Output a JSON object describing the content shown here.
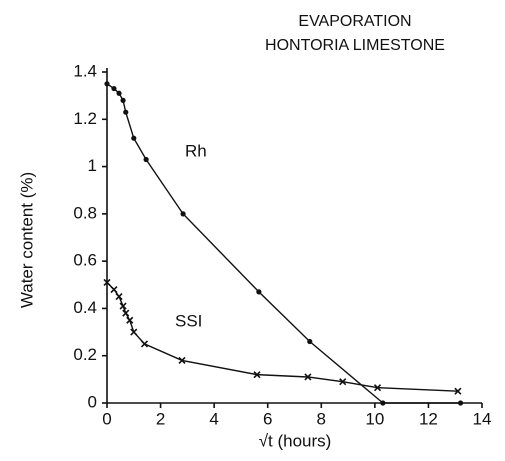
{
  "chart_data": {
    "type": "line",
    "title": "EVAPORATION",
    "subtitle": "HONTORIA LIMESTONE",
    "x_label": "√t (hours)",
    "y_label": "Water content (%)",
    "xlim": [
      0,
      14
    ],
    "xticks": [
      0,
      2,
      4,
      6,
      8,
      10,
      12,
      14
    ],
    "ylim": [
      0,
      1.4
    ],
    "yticks": [
      0,
      0.2,
      0.4,
      0.6,
      0.8,
      1,
      1.2,
      1.4
    ],
    "grid": false,
    "series": [
      {
        "name": "Rh",
        "color": "#111111",
        "marker": "circle",
        "x": [
          0,
          0.26,
          0.45,
          0.6,
          0.7,
          1.0,
          1.46,
          2.84,
          5.67,
          7.57,
          10.3,
          13.2
        ],
        "values": [
          1.35,
          1.33,
          1.31,
          1.28,
          1.23,
          1.12,
          1.03,
          0.8,
          0.47,
          0.26,
          0.0,
          0.0
        ]
      },
      {
        "name": "SSI",
        "color": "#111111",
        "marker": "cross",
        "x": [
          0,
          0.26,
          0.45,
          0.6,
          0.7,
          0.85,
          1.0,
          1.4,
          2.8,
          5.6,
          7.5,
          8.8,
          10.1,
          13.1
        ],
        "values": [
          0.51,
          0.48,
          0.45,
          0.41,
          0.38,
          0.35,
          0.3,
          0.25,
          0.18,
          0.12,
          0.11,
          0.09,
          0.065,
          0.05
        ]
      }
    ]
  }
}
